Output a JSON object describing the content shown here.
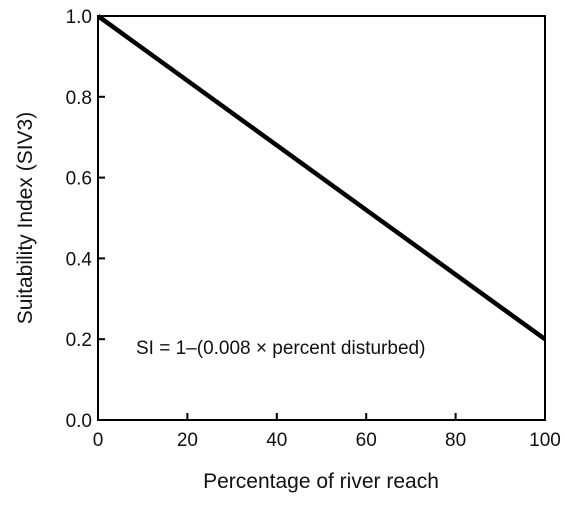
{
  "chart_data": {
    "type": "line",
    "xlabel": "Percentage of river reach",
    "ylabel": "Suitability Index (SIV3)",
    "xlim": [
      0,
      100
    ],
    "ylim": [
      0.0,
      1.0
    ],
    "x_ticks": [
      "0",
      "20",
      "40",
      "60",
      "80",
      "100"
    ],
    "y_ticks": [
      "0.0",
      "0.2",
      "0.4",
      "0.6",
      "0.8",
      "1.0"
    ],
    "series": [
      {
        "x": [
          0,
          100
        ],
        "y": [
          1.0,
          0.2
        ]
      }
    ],
    "annotation": "SI = 1–(0.008 × percent disturbed)",
    "grid": false,
    "legend": "none",
    "line_color": "#000000"
  }
}
